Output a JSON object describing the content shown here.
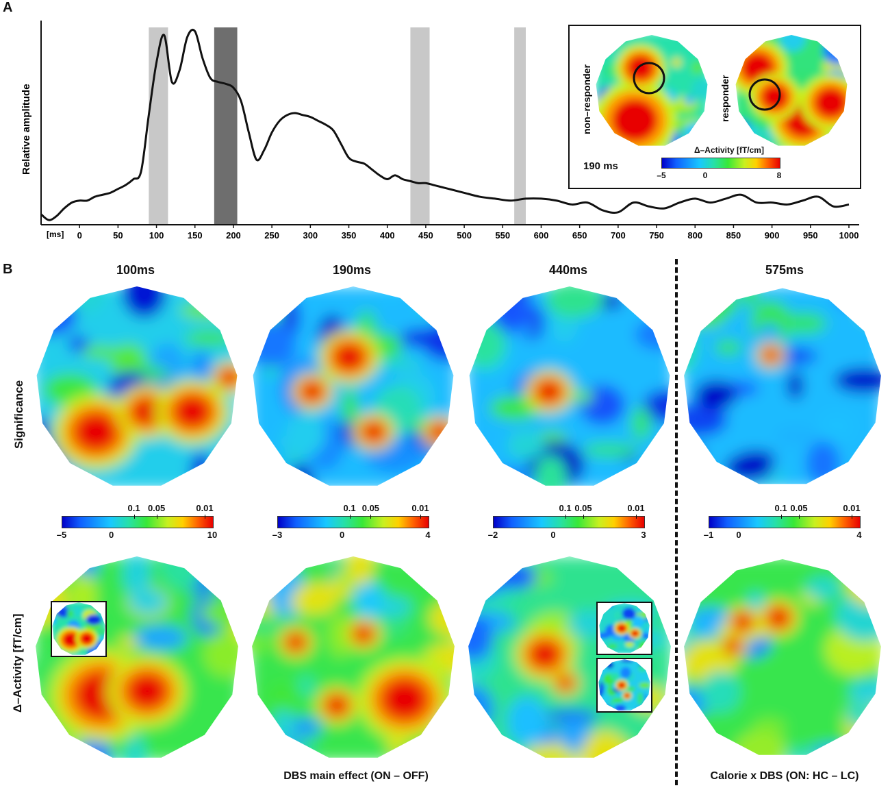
{
  "panels": {
    "a": "A",
    "b": "B"
  },
  "chart_data": {
    "type": "line",
    "title": "",
    "ylabel": "Relative amplitude",
    "xunit": "[ms]",
    "xlim": [
      -50,
      1000
    ],
    "xticks": [
      0,
      50,
      100,
      150,
      200,
      250,
      300,
      350,
      400,
      450,
      500,
      550,
      600,
      650,
      700,
      750,
      800,
      850,
      900,
      950,
      1000
    ],
    "series": [
      {
        "name": "Relative amplitude",
        "x": [
          -50,
          -40,
          -30,
          -20,
          -10,
          0,
          10,
          20,
          30,
          40,
          50,
          60,
          70,
          80,
          90,
          100,
          110,
          120,
          130,
          140,
          150,
          160,
          170,
          180,
          190,
          200,
          210,
          220,
          230,
          240,
          250,
          260,
          270,
          280,
          290,
          300,
          310,
          320,
          330,
          340,
          350,
          360,
          370,
          380,
          390,
          400,
          410,
          420,
          430,
          440,
          450,
          460,
          470,
          480,
          490,
          500,
          520,
          540,
          560,
          580,
          600,
          620,
          640,
          660,
          680,
          700,
          720,
          740,
          760,
          780,
          800,
          820,
          840,
          860,
          880,
          900,
          920,
          940,
          960,
          980,
          1000
        ],
        "values": [
          0.04,
          0.01,
          0.03,
          0.07,
          0.1,
          0.11,
          0.11,
          0.13,
          0.14,
          0.15,
          0.17,
          0.19,
          0.22,
          0.26,
          0.55,
          0.82,
          0.96,
          0.72,
          0.78,
          0.95,
          0.98,
          0.84,
          0.74,
          0.72,
          0.71,
          0.69,
          0.62,
          0.46,
          0.32,
          0.37,
          0.46,
          0.52,
          0.55,
          0.56,
          0.55,
          0.54,
          0.52,
          0.5,
          0.47,
          0.4,
          0.33,
          0.31,
          0.3,
          0.27,
          0.24,
          0.22,
          0.24,
          0.22,
          0.21,
          0.2,
          0.2,
          0.19,
          0.18,
          0.17,
          0.16,
          0.15,
          0.13,
          0.12,
          0.11,
          0.12,
          0.12,
          0.11,
          0.09,
          0.1,
          0.06,
          0.05,
          0.1,
          0.08,
          0.07,
          0.1,
          0.12,
          0.1,
          0.12,
          0.14,
          0.1,
          0.1,
          0.09,
          0.11,
          0.13,
          0.08,
          0.09
        ]
      }
    ],
    "highlight_bands": [
      {
        "from": 90,
        "to": 115,
        "shade": "light"
      },
      {
        "from": 175,
        "to": 205,
        "shade": "dark"
      },
      {
        "from": 430,
        "to": 455,
        "shade": "light"
      },
      {
        "from": 565,
        "to": 580,
        "shade": "light"
      }
    ]
  },
  "inset_a": {
    "nonresponder_label": "non–responder",
    "responder_label": "responder",
    "time_label": "190 ms",
    "cbar_title": "Δ–Activity [fT/cm]",
    "ticks": [
      "–5",
      "0",
      "8"
    ]
  },
  "panel_b": {
    "row_labels": {
      "significance": "Significance",
      "activity": "Δ–Activity [fT/cm]"
    },
    "columns": [
      {
        "title": "100ms",
        "cbar_ticks_bottom": [
          "–5",
          "0",
          "10"
        ],
        "cbar_ticks_top": [
          "0.1",
          "0.05",
          "0.01"
        ]
      },
      {
        "title": "190ms",
        "cbar_ticks_bottom": [
          "–3",
          "0",
          "4"
        ],
        "cbar_ticks_top": [
          "0.1",
          "0.05",
          "0.01"
        ]
      },
      {
        "title": "440ms",
        "cbar_ticks_bottom": [
          "–2",
          "0",
          "3"
        ],
        "cbar_ticks_top": [
          "0.1",
          "0.05",
          "0.01"
        ]
      },
      {
        "title": "575ms",
        "cbar_ticks_bottom": [
          "–1",
          "0",
          "4"
        ],
        "cbar_ticks_top": [
          "0.1",
          "0.05",
          "0.01"
        ]
      }
    ],
    "caption_left": "DBS main effect (ON – OFF)",
    "caption_right": "Calorie x DBS (ON: HC – LC)"
  },
  "colors": {
    "line": "#111111",
    "band_light": "#c8c8c8",
    "band_dark": "#6e6e6e"
  }
}
